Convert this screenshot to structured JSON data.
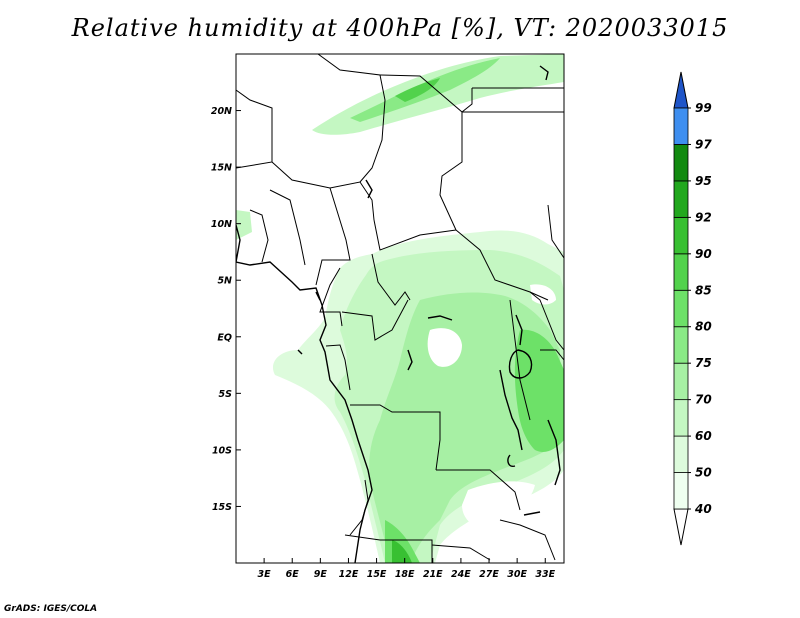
{
  "title": "Relative humidity at 400hPa [%], VT: 2020033015",
  "credit": "GrADS: IGES/COLA",
  "map": {
    "lon_range": [
      0,
      35
    ],
    "lat_range": [
      -20,
      25
    ],
    "lon_ticks": [
      {
        "value": 3,
        "label": "3E"
      },
      {
        "value": 6,
        "label": "6E"
      },
      {
        "value": 9,
        "label": "9E"
      },
      {
        "value": 12,
        "label": "12E"
      },
      {
        "value": 15,
        "label": "15E"
      },
      {
        "value": 18,
        "label": "18E"
      },
      {
        "value": 21,
        "label": "21E"
      },
      {
        "value": 24,
        "label": "24E"
      },
      {
        "value": 27,
        "label": "27E"
      },
      {
        "value": 30,
        "label": "30E"
      },
      {
        "value": 33,
        "label": "33E"
      }
    ],
    "lat_ticks": [
      {
        "value": 20,
        "label": "20N"
      },
      {
        "value": 15,
        "label": "15N"
      },
      {
        "value": 10,
        "label": "10N"
      },
      {
        "value": 5,
        "label": "5N"
      },
      {
        "value": 0,
        "label": "EQ"
      },
      {
        "value": -5,
        "label": "5S"
      },
      {
        "value": -10,
        "label": "10S"
      },
      {
        "value": -15,
        "label": "15S"
      }
    ]
  },
  "colorbar": {
    "levels": [
      {
        "label": "40",
        "color": "#effff0"
      },
      {
        "label": "50",
        "color": "#ddfbdc"
      },
      {
        "label": "60",
        "color": "#c4f7c2"
      },
      {
        "label": "70",
        "color": "#a7f0a4"
      },
      {
        "label": "75",
        "color": "#8aea86"
      },
      {
        "label": "80",
        "color": "#6de168"
      },
      {
        "label": "85",
        "color": "#52d24c"
      },
      {
        "label": "90",
        "color": "#38c032"
      },
      {
        "label": "92",
        "color": "#22a81e"
      },
      {
        "label": "95",
        "color": "#128a10"
      },
      {
        "label": "97",
        "color": "#3f8ff0"
      },
      {
        "label": "99",
        "color": "#2467d6"
      }
    ],
    "below_color": "#ffffff",
    "above_color": "#1f55c8"
  }
}
